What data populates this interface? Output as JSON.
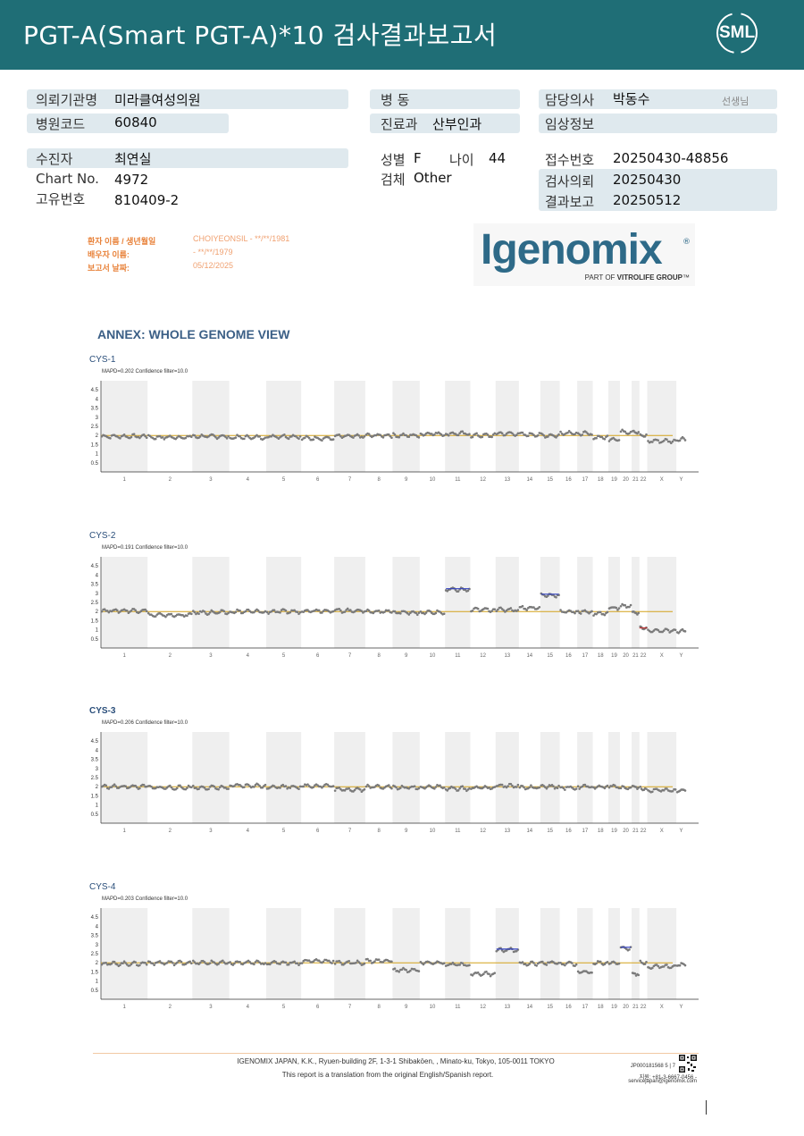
{
  "header": {
    "title": "PGT-A(Smart  PGT-A)*10 검사결과보고서",
    "logo_text": "SML",
    "bg_color": "#1f6e76"
  },
  "info": {
    "requester_label": "의뢰기관명",
    "requester_value": "미라클여성의원",
    "hospital_code_label": "병원코드",
    "hospital_code_value": "60840",
    "patient_label": "수진자",
    "patient_value": "최연실",
    "chart_label": "Chart No.",
    "chart_value": "4972",
    "unique_label": "고유번호",
    "unique_value": "810409-2",
    "ward_label": "병   동",
    "dept_label": "진료과",
    "dept_value": "산부인과",
    "sex_label": "성별",
    "sex_value": "F",
    "age_label": "나이",
    "age_value": "44",
    "specimen_label": "검체",
    "specimen_value": "Other",
    "doctor_label": "담당의사",
    "doctor_value": "박동수",
    "doctor_suffix": "선생님",
    "clinical_label": "임상정보",
    "receipt_label": "접수번호",
    "receipt_value": "20250430-48856",
    "request_label": "검사의뢰",
    "request_value": "20250430",
    "report_label": "결과보고",
    "report_value": "20250512"
  },
  "lab": {
    "patient_name_label": "환자 이름 / 생년월일",
    "patient_name_value": "CHOIYEONSIL - **/**/1981",
    "spouse_label": "배우자 이름:",
    "spouse_value": " - **/**/1979",
    "report_date_label": "보고서 날짜:",
    "report_date_value": "05/12/2025",
    "logo_word": "Igenomix",
    "logo_reg": "®",
    "logo_sub_a": "PART OF ",
    "logo_sub_b": "VITROLIFE GROUP",
    "logo_sub_c": "™"
  },
  "annex_title": "ANNEX: WHOLE GENOME VIEW",
  "chart_data": [
    {
      "type": "scatter",
      "title": "CYS-1",
      "subtitle": "MAPD=0.202 Confidence filter=10.0",
      "yticks": [
        "4.5",
        "4",
        "3.5",
        "3",
        "2.5",
        "2",
        "1.5",
        "1",
        "0.5"
      ],
      "ylim": [
        0,
        5
      ],
      "baseline": 2,
      "categories": [
        "1",
        "2",
        "3",
        "4",
        "5",
        "6",
        "7",
        "8",
        "9",
        "10",
        "11",
        "12",
        "13",
        "14",
        "15",
        "16",
        "17",
        "18",
        "19",
        "20",
        "21",
        "22",
        "X",
        "Y"
      ],
      "values": [
        1.95,
        1.9,
        1.95,
        1.9,
        1.95,
        1.85,
        1.95,
        2.0,
        2.0,
        2.1,
        2.1,
        2.0,
        2.1,
        2.05,
        2.0,
        2.15,
        2.1,
        1.9,
        1.8,
        2.2,
        2.2,
        2.0,
        1.7,
        1.8
      ]
    },
    {
      "type": "scatter",
      "title": "CYS-2",
      "subtitle": "MAPD=0.191 Confidence filter=10.0",
      "yticks": [
        "4.5",
        "4",
        "3.5",
        "3",
        "2.5",
        "2",
        "1.5",
        "1",
        "0.5"
      ],
      "ylim": [
        0,
        5
      ],
      "baseline": 2,
      "categories": [
        "1",
        "2",
        "3",
        "4",
        "5",
        "6",
        "7",
        "8",
        "9",
        "10",
        "11",
        "12",
        "13",
        "14",
        "15",
        "16",
        "17",
        "18",
        "19",
        "20",
        "21",
        "22",
        "X",
        "Y"
      ],
      "values": [
        2.05,
        1.8,
        1.95,
        2.0,
        2.0,
        2.05,
        2.05,
        2.0,
        1.95,
        1.95,
        3.2,
        2.1,
        2.1,
        2.2,
        2.9,
        2.0,
        2.0,
        1.9,
        2.2,
        2.3,
        1.95,
        1.1,
        0.95,
        0.9
      ],
      "gains": [
        "11",
        "15"
      ],
      "losses": [
        "22"
      ]
    },
    {
      "type": "scatter",
      "title": "CYS-3",
      "subtitle": "MAPD=0.206 Confidence filter=10.0",
      "yticks": [
        "4.5",
        "4",
        "3.5",
        "3",
        "2.5",
        "2",
        "1.5",
        "1",
        "0.5"
      ],
      "ylim": [
        0,
        5
      ],
      "baseline": 2,
      "categories": [
        "1",
        "2",
        "3",
        "4",
        "5",
        "6",
        "7",
        "8",
        "9",
        "10",
        "11",
        "12",
        "13",
        "14",
        "15",
        "16",
        "17",
        "18",
        "19",
        "20",
        "21",
        "22",
        "X",
        "Y"
      ],
      "values": [
        2.0,
        1.95,
        1.95,
        2.05,
        2.0,
        2.05,
        1.85,
        2.0,
        1.95,
        2.0,
        1.9,
        1.95,
        2.05,
        1.95,
        2.0,
        1.95,
        2.0,
        2.0,
        2.0,
        1.95,
        2.0,
        1.9,
        1.8,
        1.8
      ]
    },
    {
      "type": "scatter",
      "title": "CYS-4",
      "subtitle": "MAPD=0.203 Confidence filter=10.0",
      "yticks": [
        "4.5",
        "4",
        "3.5",
        "3",
        "2.5",
        "2",
        "1.5",
        "1",
        "0.5"
      ],
      "ylim": [
        0,
        5
      ],
      "baseline": 2,
      "categories": [
        "1",
        "2",
        "3",
        "4",
        "5",
        "6",
        "7",
        "8",
        "9",
        "10",
        "11",
        "12",
        "13",
        "14",
        "15",
        "16",
        "17",
        "18",
        "19",
        "20",
        "21",
        "22",
        "X",
        "Y"
      ],
      "values": [
        1.95,
        2.0,
        2.0,
        2.0,
        2.0,
        2.1,
        2.0,
        2.1,
        1.6,
        2.0,
        1.9,
        1.4,
        2.7,
        1.95,
        2.0,
        1.95,
        1.5,
        2.0,
        2.0,
        2.8,
        1.4,
        2.0,
        1.8,
        1.9
      ],
      "gains": [
        "13",
        "20"
      ]
    }
  ],
  "footer": {
    "address": "IGENOMIX JAPAN, K.K., Ryuen-building 2F, 1-3-1 Shibakōen, , Minato-ku, Tokyo, 105-0011 TOKYO",
    "note": "This report is a translation from the original English/Spanish report.",
    "doc_id": "JP000181568     5 | 7",
    "phone": "지원: +81-3-6667-0456 -",
    "email": "servicejapan@igenomix.com"
  }
}
